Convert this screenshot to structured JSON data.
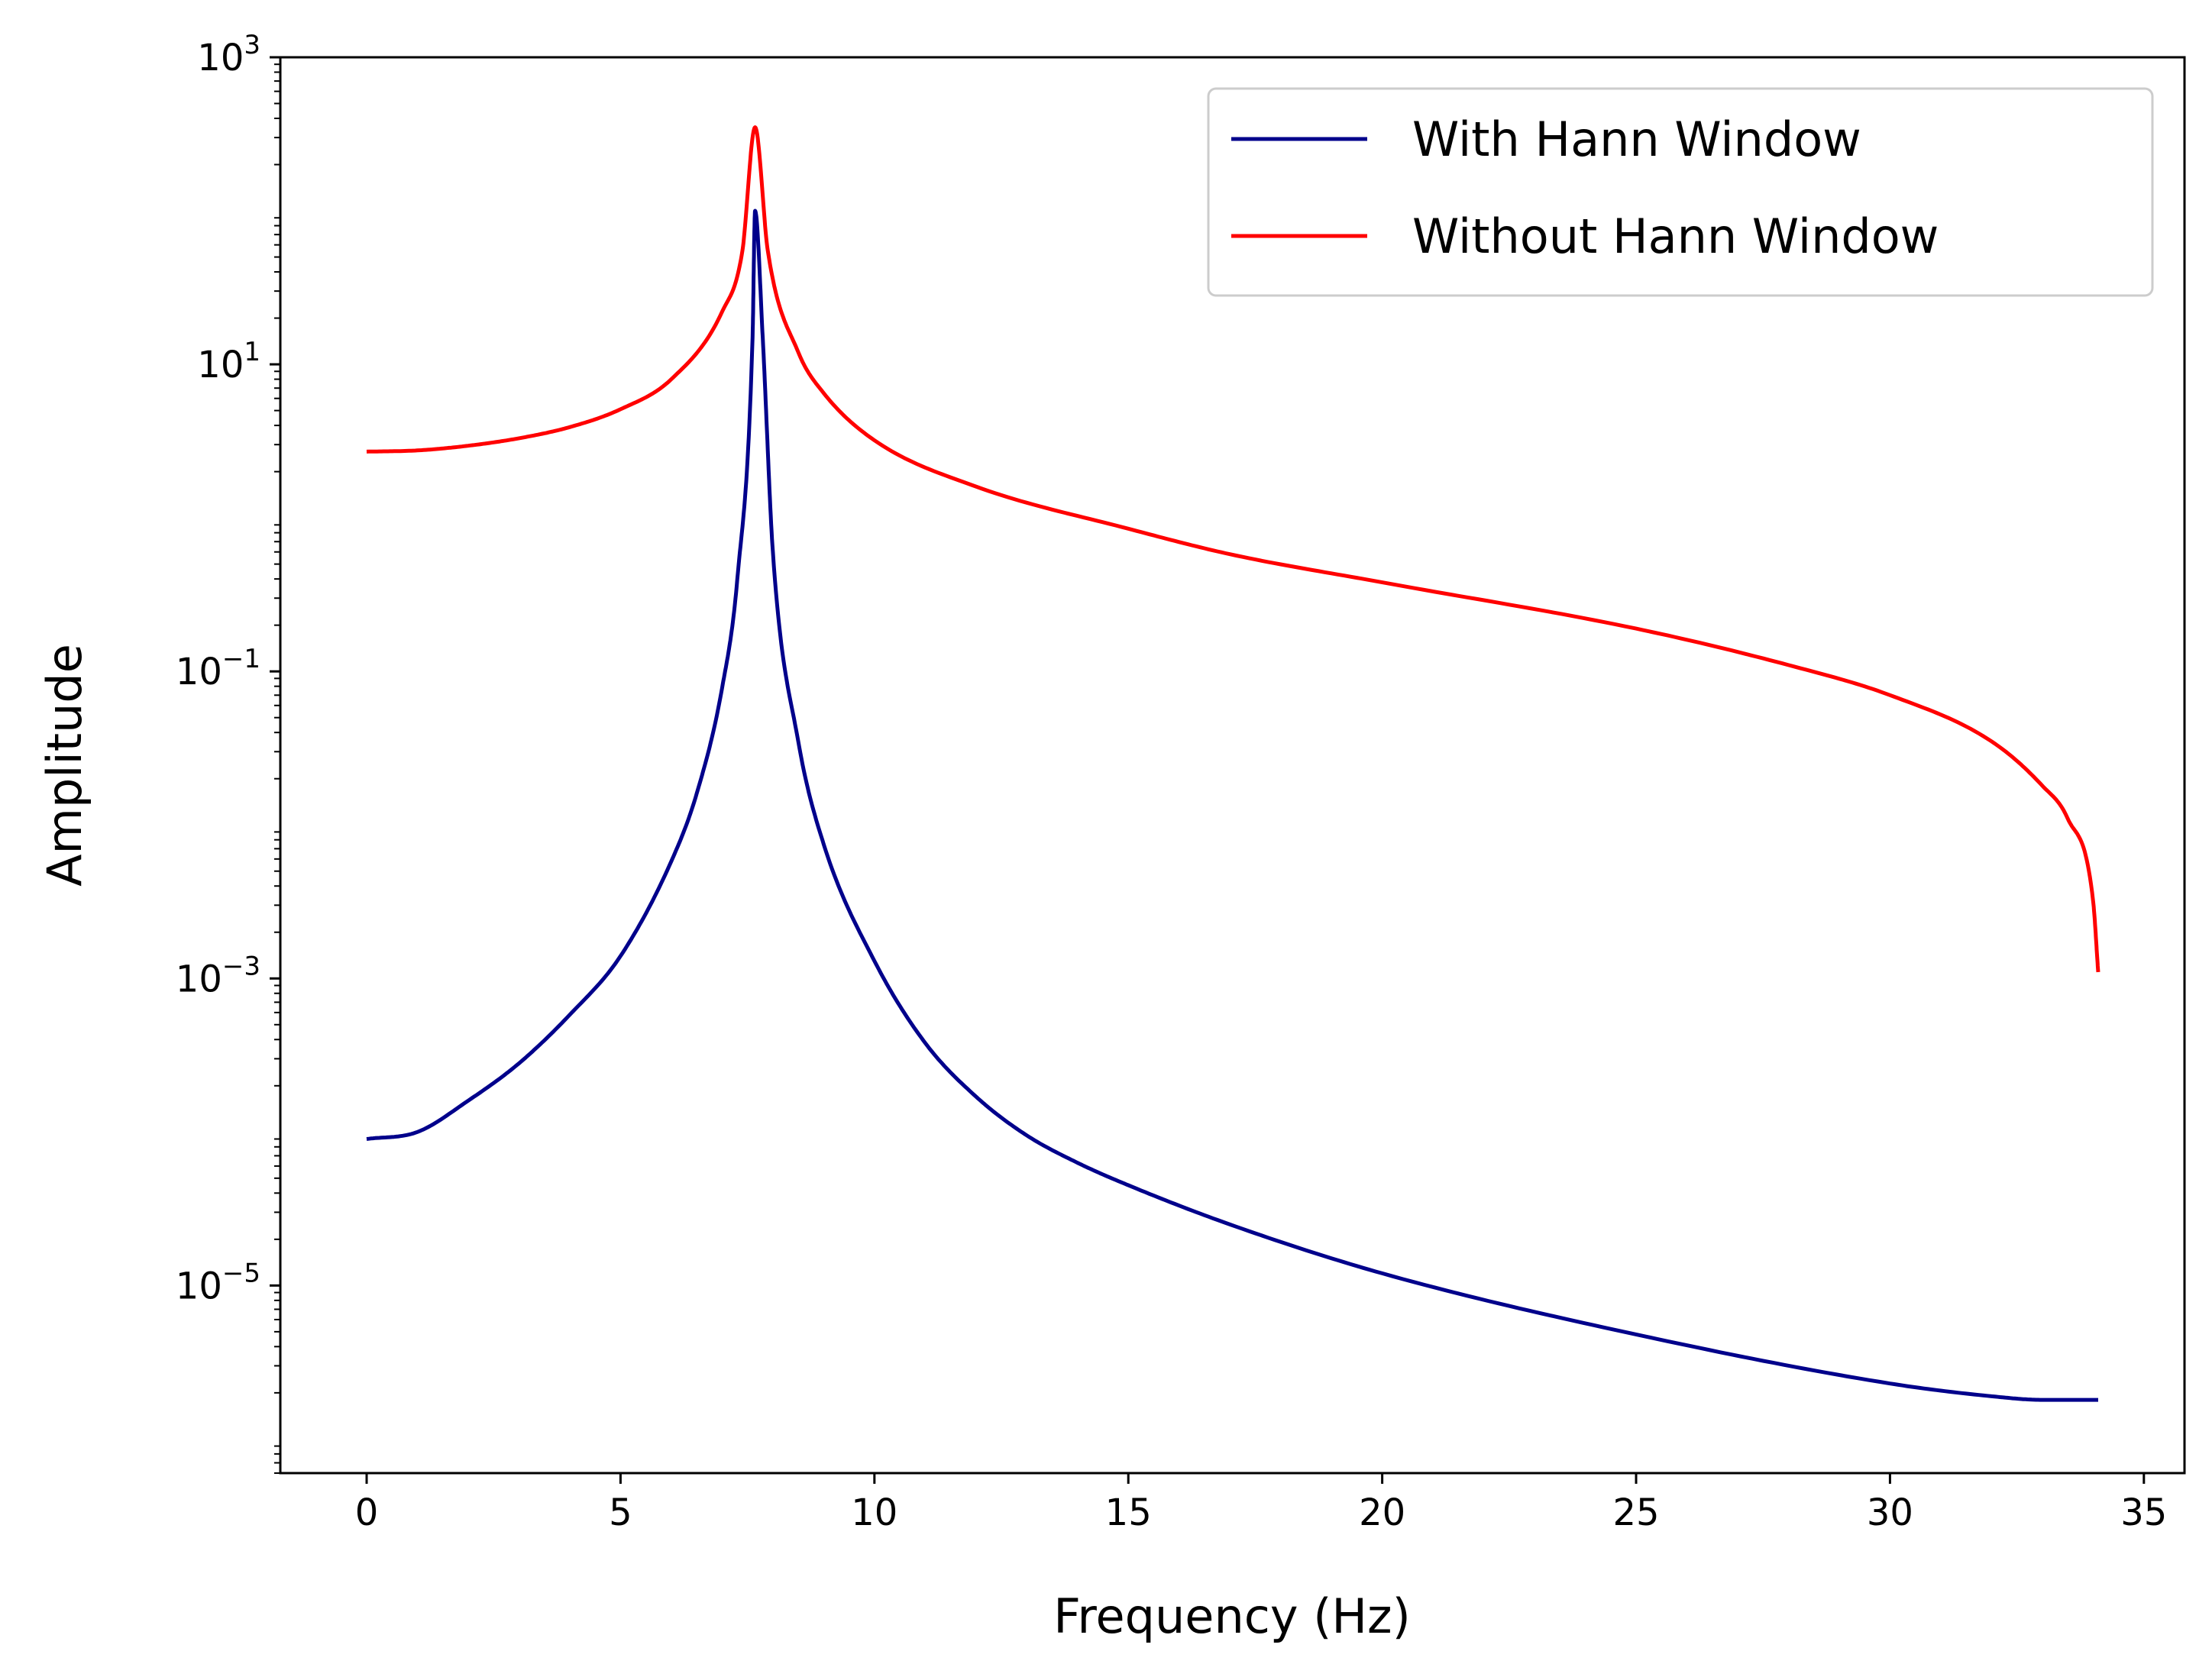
{
  "chart_data": {
    "type": "line",
    "title": "",
    "xlabel": "Frequency (Hz)",
    "ylabel": "Amplitude",
    "xlim": [
      -1.7,
      35.8
    ],
    "ylim": [
      6e-07,
      1000
    ],
    "yscale": "log",
    "grid": false,
    "legend_position": "top-right",
    "xticks": [
      0,
      5,
      10,
      15,
      20,
      25,
      30,
      35
    ],
    "xtick_labels": [
      "0",
      "5",
      "10",
      "15",
      "20",
      "25",
      "30",
      "35"
    ],
    "yticks": [
      {
        "value": 1000,
        "base": "10",
        "exp": "3"
      },
      {
        "value": 10,
        "base": "10",
        "exp": "1"
      },
      {
        "value": 0.1,
        "base": "10",
        "exp": "−1"
      },
      {
        "value": 0.001,
        "base": "10",
        "exp": "−3"
      },
      {
        "value": 1e-05,
        "base": "10",
        "exp": "−5"
      }
    ],
    "series": [
      {
        "name": "With Hann Window",
        "color": "#00008b",
        "x": [
          0,
          1,
          2,
          3,
          4,
          5,
          6,
          6.5,
          7,
          7.3,
          7.6,
          7.65,
          7.8,
          8,
          8.5,
          9,
          10,
          11,
          12,
          13,
          14,
          15,
          17,
          20,
          25,
          30,
          32,
          33,
          34.1
        ],
        "y": [
          9e-05,
          0.0001,
          0.00016,
          0.00028,
          0.00058,
          0.0014,
          0.0058,
          0.016,
          0.078,
          0.4,
          15,
          100,
          15,
          0.6,
          0.035,
          0.0075,
          0.0013,
          0.00038,
          0.00017,
          9.5e-05,
          6.3e-05,
          4.5e-05,
          2.5e-05,
          1.2e-05,
          4.8e-06,
          2.3e-06,
          1.9e-06,
          1.8e-06,
          1.8e-06
        ]
      },
      {
        "name": "Without Hann Window",
        "color": "#ff0000",
        "x": [
          0,
          1,
          2,
          3,
          4,
          5,
          6,
          7,
          7.4,
          7.65,
          7.9,
          8.5,
          9,
          10,
          12,
          15,
          17,
          20,
          25,
          28,
          30,
          32,
          33,
          33.5,
          34,
          34.1
        ],
        "y": [
          2.7,
          2.75,
          2.95,
          3.3,
          3.9,
          5.1,
          8,
          22,
          55,
          350,
          55,
          12,
          6.5,
          3.2,
          1.6,
          0.85,
          0.58,
          0.38,
          0.19,
          0.11,
          0.07,
          0.035,
          0.018,
          0.011,
          0.0032,
          0.0011
        ]
      }
    ]
  }
}
